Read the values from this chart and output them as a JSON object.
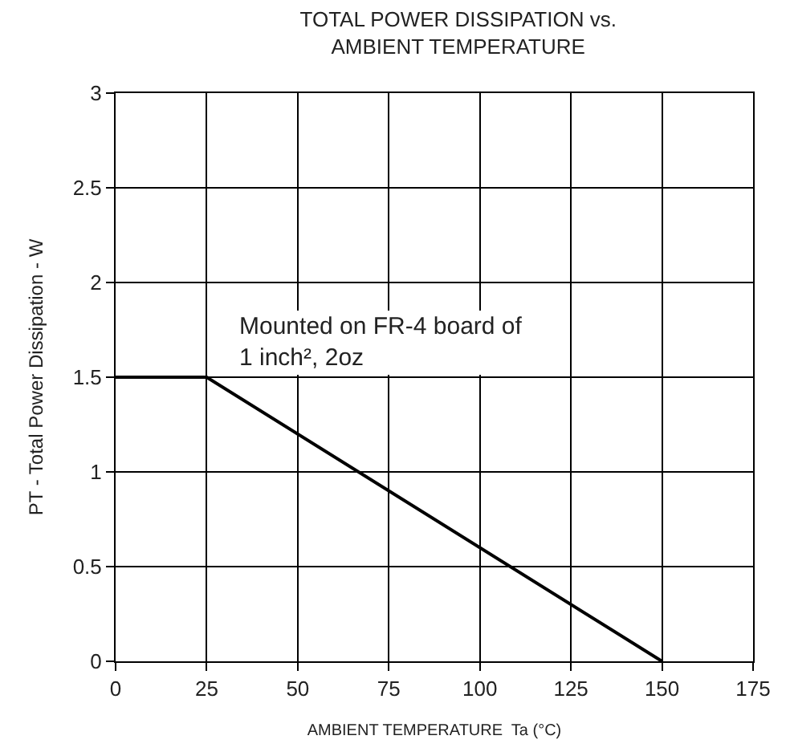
{
  "chart_data": {
    "type": "line",
    "title": "TOTAL POWER DISSIPATION vs.\nAMBIENT TEMPERATURE",
    "xlabel": "AMBIENT TEMPERATURE  Ta (°C)",
    "ylabel": "PT - Total Power Dissipation - W",
    "x": [
      0,
      25,
      150
    ],
    "series": [
      {
        "color": "#000000",
        "values": [
          1.5,
          1.5,
          0
        ]
      }
    ],
    "xlim": [
      0,
      175
    ],
    "xticks": [
      0,
      25,
      50,
      75,
      100,
      125,
      150,
      175
    ],
    "ylim": [
      0,
      3
    ],
    "yticks": [
      0,
      0.5,
      1,
      1.5,
      2,
      2.5,
      3
    ],
    "grid": true,
    "marker": "none",
    "line_style": "solid",
    "annotations": [
      "Mounted on FR-4 board of\n1 inch², 2oz"
    ]
  }
}
